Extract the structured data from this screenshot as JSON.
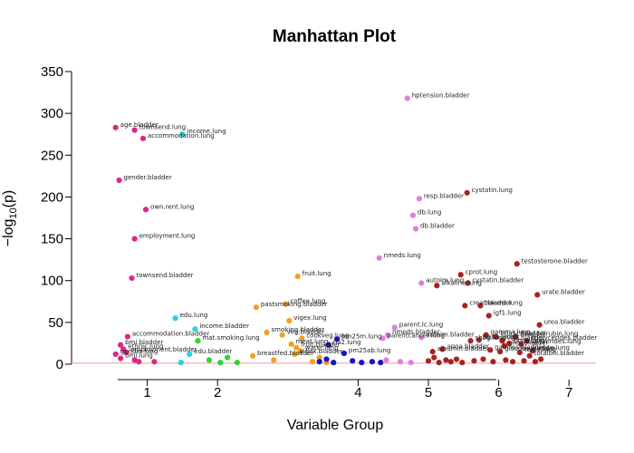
{
  "chart_data": {
    "type": "scatter",
    "title": "Manhattan Plot",
    "xlabel": "Variable Group",
    "ylabel": "−log",
    "ylabel_sub": "10",
    "ylabel_arg": "(p)",
    "xlim": [
      0.0,
      8.0
    ],
    "ylim": [
      0,
      350
    ],
    "x_ticks": [
      1,
      2,
      4,
      5,
      6,
      7
    ],
    "y_ticks": [
      0,
      50,
      100,
      150,
      200,
      250,
      300,
      350
    ],
    "threshold": 1.3,
    "threshold_color": "#f4a6a6",
    "groups": [
      {
        "id": "g1",
        "color": "#e0248a"
      },
      {
        "id": "g2",
        "color": "#22d3e0"
      },
      {
        "id": "g3",
        "color": "#2bd92b"
      },
      {
        "id": "g4",
        "color": "#f0a21f"
      },
      {
        "id": "g5",
        "color": "#1414c8"
      },
      {
        "id": "g6",
        "color": "#e07fe0"
      },
      {
        "id": "g7",
        "color": "#a82222"
      }
    ],
    "points": [
      {
        "x": 0.55,
        "y": 283,
        "g": "g1",
        "label": "age.bladder"
      },
      {
        "x": 0.82,
        "y": 280,
        "g": "g1",
        "label": "townsend.lung"
      },
      {
        "x": 0.94,
        "y": 270,
        "g": "g1",
        "label": "accommodation.lung"
      },
      {
        "x": 0.6,
        "y": 220,
        "g": "g1",
        "label": "gender.bladder"
      },
      {
        "x": 0.98,
        "y": 185,
        "g": "g1",
        "label": "own.rent.lung"
      },
      {
        "x": 0.82,
        "y": 150,
        "g": "g1",
        "label": "employment.lung"
      },
      {
        "x": 0.78,
        "y": 103,
        "g": "g1",
        "label": "townsend.bladder"
      },
      {
        "x": 0.72,
        "y": 33,
        "g": "g1",
        "label": "accommodation.bladder"
      },
      {
        "x": 0.62,
        "y": 23,
        "g": "g1",
        "label": "bmi.bladder"
      },
      {
        "x": 0.66,
        "y": 18,
        "g": "g1",
        "label": "ethnic.lung"
      },
      {
        "x": 0.7,
        "y": 14,
        "g": "g1",
        "label": "employment.bladder"
      },
      {
        "x": 0.55,
        "y": 12,
        "g": "g1",
        "label": "gender.lung"
      },
      {
        "x": 0.62,
        "y": 7,
        "g": "g1",
        "label": "bmi.lung"
      },
      {
        "x": 0.82,
        "y": 5,
        "g": "g1",
        "label": ""
      },
      {
        "x": 0.88,
        "y": 3,
        "g": "g1",
        "label": ""
      },
      {
        "x": 1.1,
        "y": 3,
        "g": "g1",
        "label": ""
      },
      {
        "x": 1.5,
        "y": 275,
        "g": "g2",
        "label": "income.lung"
      },
      {
        "x": 1.4,
        "y": 55,
        "g": "g2",
        "label": "edu.lung"
      },
      {
        "x": 1.68,
        "y": 42,
        "g": "g2",
        "label": "income.bladder"
      },
      {
        "x": 1.6,
        "y": 12,
        "g": "g2",
        "label": "edu.bladder"
      },
      {
        "x": 1.48,
        "y": 2,
        "g": "g2",
        "label": ""
      },
      {
        "x": 1.72,
        "y": 28,
        "g": "g3",
        "label": "mat.smoking.lung"
      },
      {
        "x": 1.88,
        "y": 5,
        "g": "g3",
        "label": ""
      },
      {
        "x": 2.04,
        "y": 2,
        "g": "g3",
        "label": ""
      },
      {
        "x": 2.14,
        "y": 8,
        "g": "g3",
        "label": ""
      },
      {
        "x": 2.28,
        "y": 2,
        "g": "g3",
        "label": ""
      },
      {
        "x": 3.14,
        "y": 105,
        "g": "g4",
        "label": "fruit.lung"
      },
      {
        "x": 2.55,
        "y": 68,
        "g": "g4",
        "label": "pastsmoking.bladder"
      },
      {
        "x": 2.97,
        "y": 72,
        "g": "g4",
        "label": "coffee.lung"
      },
      {
        "x": 3.02,
        "y": 52,
        "g": "g4",
        "label": "vigex.lung"
      },
      {
        "x": 2.7,
        "y": 38,
        "g": "g4",
        "label": "smoking.bladder"
      },
      {
        "x": 2.92,
        "y": 35,
        "g": "g4",
        "label": "veg.bladder"
      },
      {
        "x": 3.2,
        "y": 31,
        "g": "g4",
        "label": "cookveg.lung"
      },
      {
        "x": 3.05,
        "y": 24,
        "g": "g4",
        "label": "meat.lung"
      },
      {
        "x": 3.12,
        "y": 20,
        "g": "g4",
        "label": "fruit.bladder"
      },
      {
        "x": 3.18,
        "y": 16,
        "g": "g4",
        "label": "water.lung"
      },
      {
        "x": 3.1,
        "y": 12,
        "g": "g4",
        "label": "vigex.bladder"
      },
      {
        "x": 2.5,
        "y": 10,
        "g": "g4",
        "label": "breastfed.bladder"
      },
      {
        "x": 2.8,
        "y": 5,
        "g": "g4",
        "label": ""
      },
      {
        "x": 3.35,
        "y": 3,
        "g": "g4",
        "label": ""
      },
      {
        "x": 3.45,
        "y": 8,
        "g": "g4",
        "label": ""
      },
      {
        "x": 3.55,
        "y": 2,
        "g": "g4",
        "label": ""
      },
      {
        "x": 3.7,
        "y": 30,
        "g": "g5",
        "label": "pm25m.lung"
      },
      {
        "x": 3.58,
        "y": 23,
        "g": "g5",
        "label": "no2.lung"
      },
      {
        "x": 3.8,
        "y": 13,
        "g": "g5",
        "label": "pm25ab.lung"
      },
      {
        "x": 3.45,
        "y": 3,
        "g": "g5",
        "label": ""
      },
      {
        "x": 3.55,
        "y": 6,
        "g": "g5",
        "label": ""
      },
      {
        "x": 3.65,
        "y": 2,
        "g": "g5",
        "label": ""
      },
      {
        "x": 3.92,
        "y": 4,
        "g": "g5",
        "label": ""
      },
      {
        "x": 4.05,
        "y": 2,
        "g": "g5",
        "label": ""
      },
      {
        "x": 4.2,
        "y": 3,
        "g": "g5",
        "label": ""
      },
      {
        "x": 4.32,
        "y": 2,
        "g": "g5",
        "label": ""
      },
      {
        "x": 4.7,
        "y": 318,
        "g": "g6",
        "label": "hptension.bladder"
      },
      {
        "x": 4.87,
        "y": 198,
        "g": "g6",
        "label": "resp.bladder"
      },
      {
        "x": 4.78,
        "y": 178,
        "g": "g6",
        "label": "db.lung"
      },
      {
        "x": 4.82,
        "y": 162,
        "g": "g6",
        "label": "db.bladder"
      },
      {
        "x": 4.3,
        "y": 127,
        "g": "g6",
        "label": "nmeds.lung"
      },
      {
        "x": 4.9,
        "y": 97,
        "g": "g6",
        "label": "autoim.lung"
      },
      {
        "x": 4.52,
        "y": 44,
        "g": "g6",
        "label": "parent.lc.lung"
      },
      {
        "x": 4.42,
        "y": 35,
        "g": "g6",
        "label": "nmeds.bladder"
      },
      {
        "x": 4.35,
        "y": 31,
        "g": "g6",
        "label": "parentcancer.lung"
      },
      {
        "x": 4.9,
        "y": 32,
        "g": "g6",
        "label": "autoim.bladder"
      },
      {
        "x": 4.4,
        "y": 5,
        "g": "g6",
        "label": ""
      },
      {
        "x": 4.6,
        "y": 3,
        "g": "g6",
        "label": ""
      },
      {
        "x": 4.75,
        "y": 2,
        "g": "g6",
        "label": ""
      },
      {
        "x": 5.55,
        "y": 205,
        "g": "g7",
        "label": "cystatin.lung"
      },
      {
        "x": 6.26,
        "y": 120,
        "g": "g7",
        "label": "testosterone.bladder"
      },
      {
        "x": 5.46,
        "y": 107,
        "g": "g7",
        "label": "cprot.lung"
      },
      {
        "x": 5.56,
        "y": 97,
        "g": "g7",
        "label": "cystatin.bladder"
      },
      {
        "x": 5.12,
        "y": 94,
        "g": "g7",
        "label": "alkaline.lung"
      },
      {
        "x": 6.55,
        "y": 83,
        "g": "g7",
        "label": "urate.bladder"
      },
      {
        "x": 5.52,
        "y": 70,
        "g": "g7",
        "label": "creat.bladder"
      },
      {
        "x": 5.74,
        "y": 70,
        "g": "g7",
        "label": "haemo.lung"
      },
      {
        "x": 5.86,
        "y": 58,
        "g": "g7",
        "label": "igf1.lung"
      },
      {
        "x": 6.58,
        "y": 47,
        "g": "g7",
        "label": "urea.bladder"
      },
      {
        "x": 5.82,
        "y": 35,
        "g": "g7",
        "label": "gamma.lung"
      },
      {
        "x": 5.96,
        "y": 33,
        "g": "g7",
        "label": "hba1c.bladder"
      },
      {
        "x": 6.24,
        "y": 33,
        "g": "g7",
        "label": "total.bilirubin.lung"
      },
      {
        "x": 5.6,
        "y": 28,
        "g": "g7",
        "label": "shbg.lung"
      },
      {
        "x": 5.72,
        "y": 29,
        "g": "g7",
        "label": "apoa.lung"
      },
      {
        "x": 6.05,
        "y": 28,
        "g": "g7",
        "label": "vitd.bladder"
      },
      {
        "x": 6.4,
        "y": 28,
        "g": "g7",
        "label": "triglycerides.bladder"
      },
      {
        "x": 6.15,
        "y": 25,
        "g": "g7",
        "label": "phos.lung"
      },
      {
        "x": 6.32,
        "y": 24,
        "g": "g7",
        "label": "triglycerides.lung"
      },
      {
        "x": 6.08,
        "y": 22,
        "g": "g7",
        "label": "chol.bladder"
      },
      {
        "x": 5.2,
        "y": 18,
        "g": "g7",
        "label": "apoa.bladder"
      },
      {
        "x": 5.06,
        "y": 15,
        "g": "g7",
        "label": "albumin.bladder"
      },
      {
        "x": 5.88,
        "y": 17,
        "g": "g7",
        "label": "gamma.bladder"
      },
      {
        "x": 6.02,
        "y": 15,
        "g": "g7",
        "label": "glucose.bladder"
      },
      {
        "x": 6.3,
        "y": 14,
        "g": "g7",
        "label": "testo.lung"
      },
      {
        "x": 6.48,
        "y": 16,
        "g": "g7",
        "label": "urate.lung"
      },
      {
        "x": 6.44,
        "y": 10,
        "g": "g7",
        "label": "totalbili.bladder"
      },
      {
        "x": 5.0,
        "y": 4,
        "g": "g7",
        "label": ""
      },
      {
        "x": 5.08,
        "y": 8,
        "g": "g7",
        "label": ""
      },
      {
        "x": 5.15,
        "y": 2,
        "g": "g7",
        "label": ""
      },
      {
        "x": 5.25,
        "y": 5,
        "g": "g7",
        "label": ""
      },
      {
        "x": 5.32,
        "y": 3,
        "g": "g7",
        "label": ""
      },
      {
        "x": 5.4,
        "y": 6,
        "g": "g7",
        "label": ""
      },
      {
        "x": 5.48,
        "y": 2,
        "g": "g7",
        "label": ""
      },
      {
        "x": 5.65,
        "y": 4,
        "g": "g7",
        "label": ""
      },
      {
        "x": 5.78,
        "y": 6,
        "g": "g7",
        "label": ""
      },
      {
        "x": 5.92,
        "y": 3,
        "g": "g7",
        "label": ""
      },
      {
        "x": 6.1,
        "y": 5,
        "g": "g7",
        "label": ""
      },
      {
        "x": 6.2,
        "y": 3,
        "g": "g7",
        "label": ""
      },
      {
        "x": 6.36,
        "y": 4,
        "g": "g7",
        "label": ""
      },
      {
        "x": 6.52,
        "y": 3,
        "g": "g7",
        "label": ""
      },
      {
        "x": 6.6,
        "y": 6,
        "g": "g7",
        "label": ""
      }
    ]
  }
}
